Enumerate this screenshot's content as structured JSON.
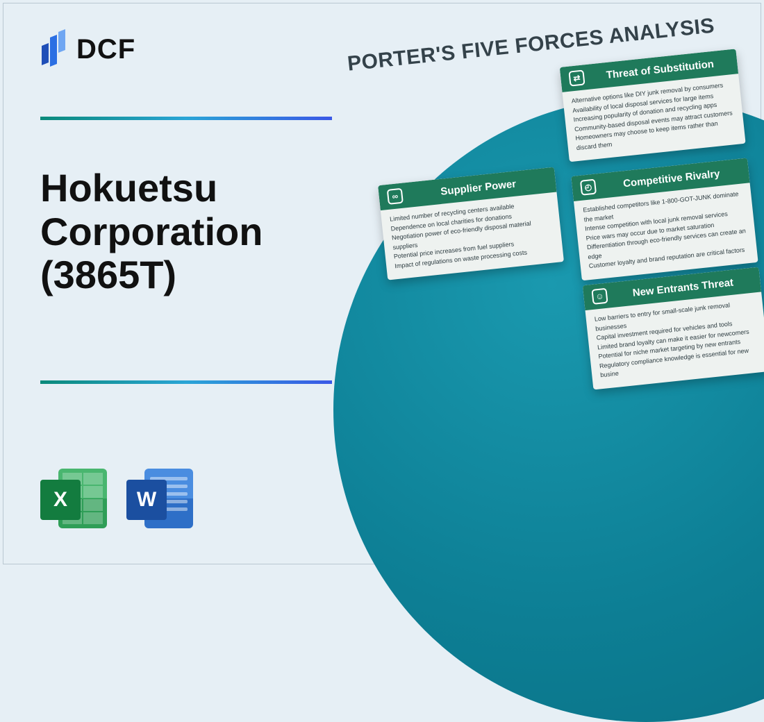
{
  "brand": {
    "name": "DCF"
  },
  "title_lines": [
    "Hokuetsu",
    "Corporation",
    "(3865T)"
  ],
  "files": {
    "excel_letter": "X",
    "word_letter": "W"
  },
  "diagram": {
    "heading": "PORTER'S FIVE FORCES ANALYSIS",
    "colors": {
      "page_bg": "#e6eff5",
      "circle_gradient": [
        "#1a99af",
        "#0d7f95",
        "#0a6e82"
      ],
      "card_header": "#1f7a5b",
      "card_bg": "#eef2f0",
      "rule_gradient": [
        "#0a8a7a",
        "#2aa5d6",
        "#3a58e6"
      ]
    },
    "cards": {
      "substitution": {
        "title": "Threat of Substitution",
        "points": [
          "Alternative options like DIY junk removal by consumers",
          "Availability of local disposal services for large items",
          "Increasing popularity of donation and recycling apps",
          "Community-based disposal events may attract customers",
          "Homeowners may choose to keep items rather than discard them"
        ]
      },
      "rivalry": {
        "title": "Competitive Rivalry",
        "points": [
          "Established competitors like 1-800-GOT-JUNK dominate the market",
          "Intense competition with local junk removal services",
          "Price wars may occur due to market saturation",
          "Differentiation through eco-friendly services can create an edge",
          "Customer loyalty and brand reputation are critical factors"
        ]
      },
      "entrants": {
        "title": "New Entrants Threat",
        "points": [
          "Low barriers to entry for small-scale junk removal businesses",
          "Capital investment required for vehicles and tools",
          "Limited brand loyalty can make it easier for newcomers",
          "Potential for niche market targeting by new entrants",
          "Regulatory compliance knowledge is essential for new busine"
        ]
      },
      "supplier": {
        "title": "Supplier Power",
        "points": [
          "Limited number of recycling centers available",
          "Dependence on local charities for donations",
          "Negotiation power of eco-friendly disposal material suppliers",
          "Potential price increases from fuel suppliers",
          "Impact of regulations on waste processing costs"
        ]
      }
    }
  }
}
